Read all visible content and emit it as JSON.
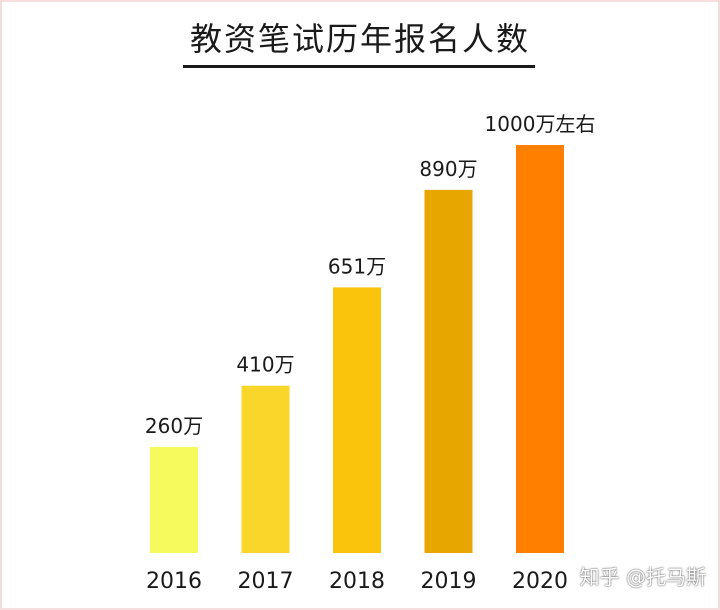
{
  "watermark": "知乎 @托马斯",
  "chart_data": {
    "type": "bar",
    "title": "教资笔试历年报名人数",
    "categories": [
      "2016",
      "2017",
      "2018",
      "2019",
      "2020"
    ],
    "values": [
      260,
      410,
      651,
      890,
      1000
    ],
    "value_labels": [
      "260万",
      "410万",
      "651万",
      "890万",
      "1000万左右"
    ],
    "colors": [
      "#f7fa5c",
      "#f8d72a",
      "#fbc40c",
      "#e8a600",
      "#ff8000"
    ],
    "xlabel": "",
    "ylabel": "",
    "ylim": [
      0,
      1000
    ],
    "grid": false,
    "legend": "none"
  }
}
